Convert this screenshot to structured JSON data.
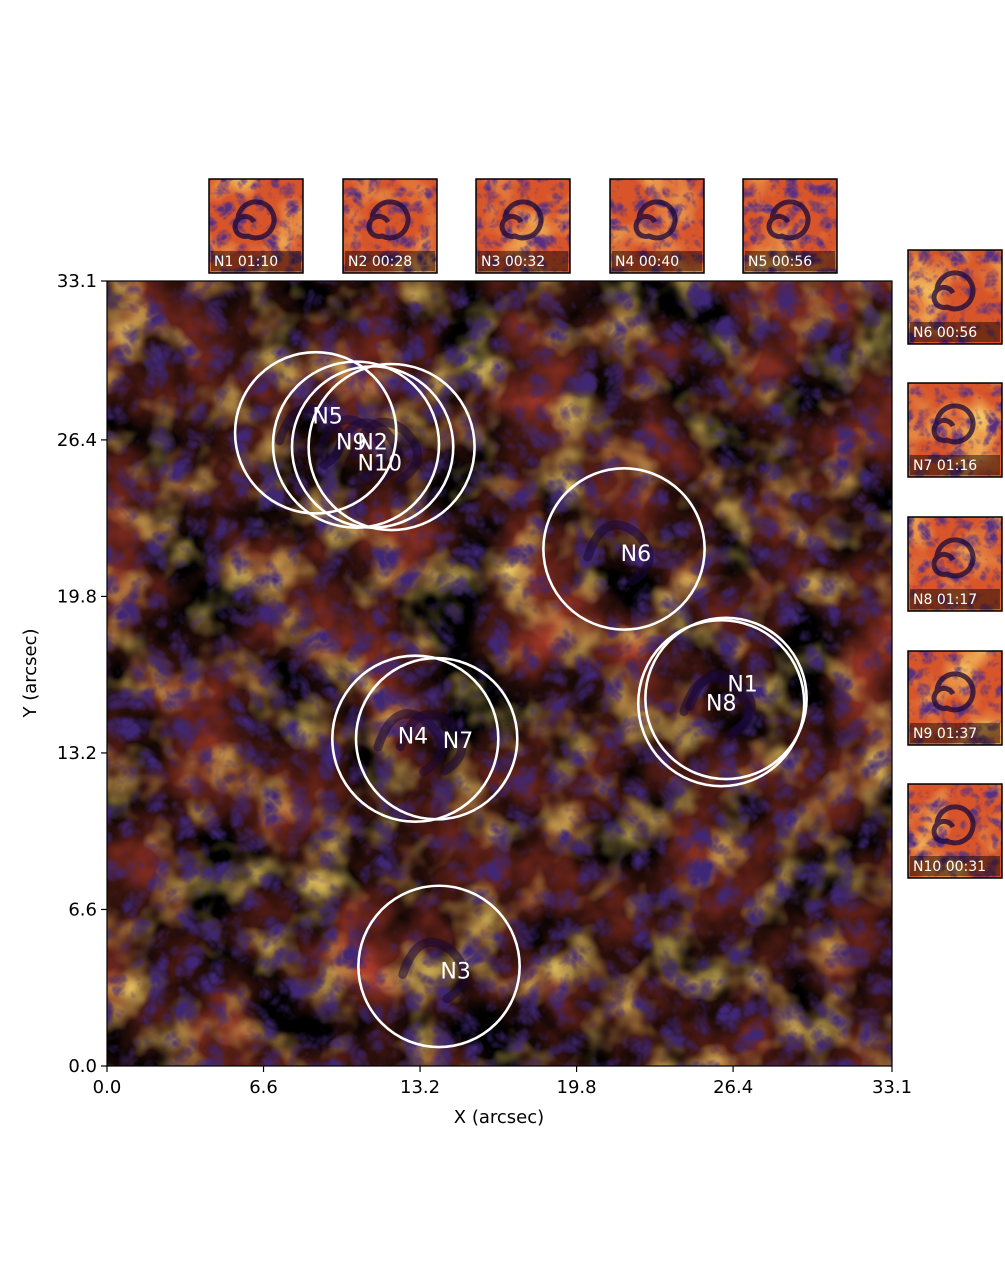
{
  "axes": {
    "x_label": "X (arcsec)",
    "y_label": "Y (arcsec)",
    "x_range": [
      0.0,
      33.1
    ],
    "y_range": [
      0.0,
      33.1
    ],
    "x_ticks": [
      "0.0",
      "6.6",
      "13.2",
      "19.8",
      "26.4",
      "33.1"
    ],
    "y_ticks": [
      "0.0",
      "6.6",
      "13.2",
      "19.8",
      "26.4",
      "33.1"
    ],
    "x_tick_values": [
      0.0,
      6.6,
      13.2,
      19.8,
      26.4,
      33.1
    ],
    "y_tick_values": [
      0.0,
      6.6,
      13.2,
      19.8,
      26.4,
      33.1
    ]
  },
  "colormap": [
    "#0d0829",
    "#3b0f6f",
    "#6a1a7a",
    "#a52c60",
    "#d8482b",
    "#f37819",
    "#fbb014",
    "#fcf4a4"
  ],
  "vortices": [
    {
      "name": "N1",
      "cx": 26.1,
      "cy": 15.5,
      "r": 3.4,
      "label_x": 26.8,
      "label_y": 15.8
    },
    {
      "name": "N2",
      "cx": 12.0,
      "cy": 26.1,
      "r": 3.5,
      "label_x": 11.2,
      "label_y": 26.0
    },
    {
      "name": "N3",
      "cx": 14.0,
      "cy": 4.2,
      "r": 3.4,
      "label_x": 14.7,
      "label_y": 3.7
    },
    {
      "name": "N4",
      "cx": 13.0,
      "cy": 13.8,
      "r": 3.5,
      "label_x": 12.9,
      "label_y": 13.6
    },
    {
      "name": "N5",
      "cx": 8.8,
      "cy": 26.7,
      "r": 3.4,
      "label_x": 9.3,
      "label_y": 27.1
    },
    {
      "name": "N6",
      "cx": 21.8,
      "cy": 21.8,
      "r": 3.4,
      "label_x": 22.3,
      "label_y": 21.3
    },
    {
      "name": "N7",
      "cx": 13.9,
      "cy": 13.8,
      "r": 3.4,
      "label_x": 14.8,
      "label_y": 13.4
    },
    {
      "name": "N8",
      "cx": 25.9,
      "cy": 15.3,
      "r": 3.5,
      "label_x": 25.9,
      "label_y": 15.0
    },
    {
      "name": "N9",
      "cx": 10.5,
      "cy": 26.2,
      "r": 3.5,
      "label_x": 10.3,
      "label_y": 26.0
    },
    {
      "name": "N10",
      "cx": 11.2,
      "cy": 26.1,
      "r": 3.4,
      "label_x": 11.5,
      "label_y": 25.1
    }
  ],
  "insets": [
    {
      "label": "N1 01:10"
    },
    {
      "label": "N2 00:28"
    },
    {
      "label": "N3 00:32"
    },
    {
      "label": "N4 00:40"
    },
    {
      "label": "N5 00:56"
    },
    {
      "label": "N6 00:56"
    },
    {
      "label": "N7 01:16"
    },
    {
      "label": "N8 01:17"
    },
    {
      "label": "N9 01:37"
    },
    {
      "label": "N10 00:31"
    }
  ]
}
